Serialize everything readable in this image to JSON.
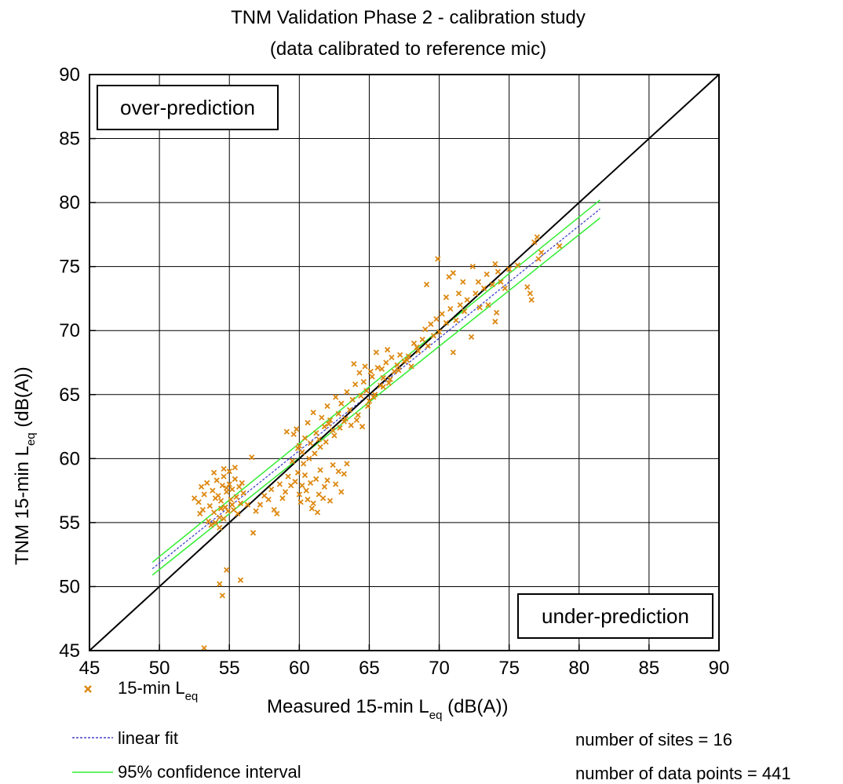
{
  "chart_data": {
    "type": "scatter",
    "title": "TNM Validation Phase 2 - calibration study",
    "subtitle": "(data calibrated to reference mic)",
    "xlabel_main": "Measured 15-min L",
    "xlabel_sub": "eq",
    "xlabel_tail": " (dB(A))",
    "ylabel_main": "TNM 15-min L",
    "ylabel_sub": "eq",
    "ylabel_tail": " (dB(A))",
    "xlim": [
      45,
      90
    ],
    "ylim": [
      45,
      90
    ],
    "xticks": [
      45,
      50,
      55,
      60,
      65,
      70,
      75,
      80,
      85,
      90
    ],
    "yticks": [
      45,
      50,
      55,
      60,
      65,
      70,
      75,
      80,
      85,
      90
    ],
    "grid": true,
    "region_labels": {
      "upper_left": "over-prediction",
      "lower_right": "under-prediction"
    },
    "legend": {
      "placement": "bottom-left",
      "scatter_main": "15-min L",
      "scatter_sub": "eq",
      "linear_fit": "linear fit",
      "confidence": "95% confidence interval"
    },
    "annotations": {
      "sites": "number of sites = 16",
      "points": "number of data points = 441"
    },
    "colors": {
      "scatter": "#dd8811",
      "linear_fit": "#4444cc",
      "confidence": "#33ee33",
      "identity": "#000000",
      "grid": "#000000"
    },
    "identity_line": {
      "x": [
        45,
        90
      ],
      "y": [
        45,
        90
      ]
    },
    "linear_fit": {
      "x": [
        49.5,
        81.5
      ],
      "y": [
        51.4,
        79.5
      ]
    },
    "confidence_upper": {
      "x": [
        49.5,
        81.5
      ],
      "y": [
        51.9,
        80.2
      ]
    },
    "confidence_lower": {
      "x": [
        49.5,
        81.5
      ],
      "y": [
        50.9,
        78.8
      ]
    },
    "series": [
      {
        "name": "15-min Leq",
        "points": [
          [
            53.2,
            45.2
          ],
          [
            54.5,
            49.3
          ],
          [
            54.3,
            50.2
          ],
          [
            54.8,
            51.3
          ],
          [
            55.8,
            50.5
          ],
          [
            52.5,
            56.9
          ],
          [
            52.8,
            56.6
          ],
          [
            53.0,
            57.8
          ],
          [
            53.2,
            57.2
          ],
          [
            53.4,
            58.1
          ],
          [
            53.6,
            56.3
          ],
          [
            53.8,
            57.5
          ],
          [
            53.9,
            55.8
          ],
          [
            54.0,
            56.9
          ],
          [
            54.1,
            58.3
          ],
          [
            54.2,
            57.1
          ],
          [
            54.3,
            55.4
          ],
          [
            54.4,
            56.7
          ],
          [
            54.5,
            57.9
          ],
          [
            54.6,
            58.6
          ],
          [
            54.7,
            56.2
          ],
          [
            54.8,
            57.4
          ],
          [
            54.9,
            55.9
          ],
          [
            55.0,
            58.0
          ],
          [
            55.1,
            56.8
          ],
          [
            55.2,
            57.6
          ],
          [
            55.3,
            56.0
          ],
          [
            55.4,
            58.4
          ],
          [
            55.5,
            57.0
          ],
          [
            55.6,
            55.7
          ],
          [
            55.7,
            57.8
          ],
          [
            55.8,
            56.5
          ],
          [
            55.9,
            58.1
          ],
          [
            53.5,
            55.1
          ],
          [
            53.7,
            54.8
          ],
          [
            54.0,
            55.0
          ],
          [
            54.3,
            54.6
          ],
          [
            54.6,
            55.3
          ],
          [
            52.9,
            55.7
          ],
          [
            53.1,
            56.0
          ],
          [
            55.0,
            59.0
          ],
          [
            54.6,
            59.2
          ],
          [
            55.4,
            59.3
          ],
          [
            53.9,
            58.9
          ],
          [
            54.8,
            57.7
          ],
          [
            55.2,
            56.4
          ],
          [
            54.4,
            56.1
          ],
          [
            56.0,
            57.3
          ],
          [
            56.3,
            56.4
          ],
          [
            56.6,
            60.1
          ],
          [
            56.7,
            54.2
          ],
          [
            56.9,
            55.9
          ],
          [
            57.2,
            56.4
          ],
          [
            57.5,
            57.1
          ],
          [
            57.8,
            56.8
          ],
          [
            58.0,
            57.6
          ],
          [
            58.2,
            56.0
          ],
          [
            58.4,
            55.7
          ],
          [
            58.6,
            58.0
          ],
          [
            58.8,
            56.9
          ],
          [
            59.0,
            57.4
          ],
          [
            59.2,
            58.6
          ],
          [
            59.4,
            57.9
          ],
          [
            59.5,
            59.8
          ],
          [
            59.7,
            58.2
          ],
          [
            59.9,
            58.9
          ],
          [
            60.0,
            57.2
          ],
          [
            60.1,
            56.6
          ],
          [
            60.2,
            57.9
          ],
          [
            60.4,
            58.7
          ],
          [
            60.5,
            57.5
          ],
          [
            60.6,
            56.8
          ],
          [
            60.8,
            58.1
          ],
          [
            61.0,
            56.5
          ],
          [
            61.2,
            58.4
          ],
          [
            61.4,
            57.2
          ],
          [
            61.5,
            59.1
          ],
          [
            61.7,
            56.9
          ],
          [
            61.8,
            57.8
          ],
          [
            62.0,
            58.3
          ],
          [
            62.2,
            56.7
          ],
          [
            62.4,
            59.5
          ],
          [
            62.6,
            58.0
          ],
          [
            62.8,
            59.0
          ],
          [
            63.0,
            57.4
          ],
          [
            63.2,
            58.8
          ],
          [
            63.4,
            59.6
          ],
          [
            60.9,
            56.1
          ],
          [
            61.3,
            55.8
          ],
          [
            59.6,
            61.9
          ],
          [
            59.8,
            62.3
          ],
          [
            60.0,
            61.0
          ],
          [
            60.2,
            60.5
          ],
          [
            60.4,
            61.6
          ],
          [
            60.6,
            62.8
          ],
          [
            60.8,
            61.2
          ],
          [
            61.0,
            63.6
          ],
          [
            61.2,
            62.0
          ],
          [
            61.4,
            61.5
          ],
          [
            61.6,
            63.2
          ],
          [
            61.8,
            62.5
          ],
          [
            62.0,
            64.1
          ],
          [
            62.2,
            63.0
          ],
          [
            62.4,
            62.2
          ],
          [
            62.6,
            64.8
          ],
          [
            62.8,
            63.5
          ],
          [
            63.0,
            64.3
          ],
          [
            63.2,
            62.9
          ],
          [
            63.4,
            65.2
          ],
          [
            63.6,
            63.8
          ],
          [
            63.8,
            64.6
          ],
          [
            64.0,
            65.8
          ],
          [
            64.2,
            63.4
          ],
          [
            64.4,
            64.9
          ],
          [
            64.6,
            66.0
          ],
          [
            64.8,
            65.3
          ],
          [
            65.0,
            64.5
          ],
          [
            65.2,
            66.4
          ],
          [
            65.4,
            65.0
          ],
          [
            65.6,
            67.1
          ],
          [
            65.8,
            65.7
          ],
          [
            66.0,
            66.3
          ],
          [
            66.2,
            67.5
          ],
          [
            66.4,
            65.9
          ],
          [
            66.6,
            67.9
          ],
          [
            66.8,
            66.8
          ],
          [
            67.0,
            67.3
          ],
          [
            67.2,
            68.1
          ],
          [
            67.5,
            67.6
          ],
          [
            67.8,
            68.0
          ],
          [
            68.0,
            67.2
          ],
          [
            62.1,
            62.7
          ],
          [
            62.5,
            61.8
          ],
          [
            62.9,
            62.4
          ],
          [
            63.3,
            63.1
          ],
          [
            63.7,
            62.6
          ],
          [
            64.1,
            63.0
          ],
          [
            64.5,
            62.5
          ],
          [
            64.3,
            66.7
          ],
          [
            64.7,
            67.2
          ],
          [
            65.1,
            66.8
          ],
          [
            65.5,
            68.3
          ],
          [
            65.9,
            67.0
          ],
          [
            66.3,
            68.5
          ],
          [
            63.9,
            67.4
          ],
          [
            61.1,
            60.4
          ],
          [
            61.5,
            60.9
          ],
          [
            61.9,
            61.3
          ],
          [
            60.7,
            60.0
          ],
          [
            60.3,
            59.6
          ],
          [
            59.9,
            60.8
          ],
          [
            59.1,
            62.1
          ],
          [
            68.2,
            69.0
          ],
          [
            68.5,
            68.4
          ],
          [
            68.8,
            69.3
          ],
          [
            69.0,
            70.1
          ],
          [
            69.2,
            68.8
          ],
          [
            69.4,
            70.5
          ],
          [
            69.6,
            69.6
          ],
          [
            69.8,
            70.9
          ],
          [
            70.0,
            69.9
          ],
          [
            70.2,
            71.3
          ],
          [
            70.5,
            70.6
          ],
          [
            70.8,
            71.7
          ],
          [
            71.0,
            68.3
          ],
          [
            71.2,
            70.8
          ],
          [
            71.5,
            72.0
          ],
          [
            71.8,
            71.5
          ],
          [
            72.0,
            72.4
          ],
          [
            72.3,
            69.5
          ],
          [
            72.6,
            72.9
          ],
          [
            72.9,
            71.8
          ],
          [
            73.2,
            73.3
          ],
          [
            69.1,
            73.6
          ],
          [
            69.9,
            75.6
          ],
          [
            70.7,
            74.2
          ],
          [
            71.0,
            74.5
          ],
          [
            71.7,
            73.8
          ],
          [
            72.4,
            75.0
          ],
          [
            73.5,
            72.0
          ],
          [
            73.8,
            73.6
          ],
          [
            74.0,
            75.2
          ],
          [
            74.1,
            71.4
          ],
          [
            74.0,
            70.7
          ],
          [
            74.2,
            74.6
          ],
          [
            74.4,
            73.8
          ],
          [
            74.7,
            73.3
          ],
          [
            75.0,
            74.8
          ],
          [
            76.3,
            73.4
          ],
          [
            76.5,
            72.9
          ],
          [
            76.6,
            72.4
          ],
          [
            76.8,
            76.9
          ],
          [
            77.0,
            77.3
          ],
          [
            77.1,
            75.6
          ],
          [
            78.6,
            76.6
          ],
          [
            77.3,
            76.1
          ],
          [
            75.6,
            75.1
          ],
          [
            70.5,
            72.6
          ],
          [
            71.4,
            72.9
          ],
          [
            72.8,
            73.8
          ],
          [
            73.4,
            74.4
          ],
          [
            66.5,
            66.2
          ],
          [
            67.1,
            66.9
          ],
          [
            67.7,
            67.7
          ],
          [
            68.4,
            68.7
          ],
          [
            66.0,
            65.6
          ],
          [
            65.3,
            64.8
          ],
          [
            64.9,
            64.1
          ]
        ]
      }
    ]
  }
}
